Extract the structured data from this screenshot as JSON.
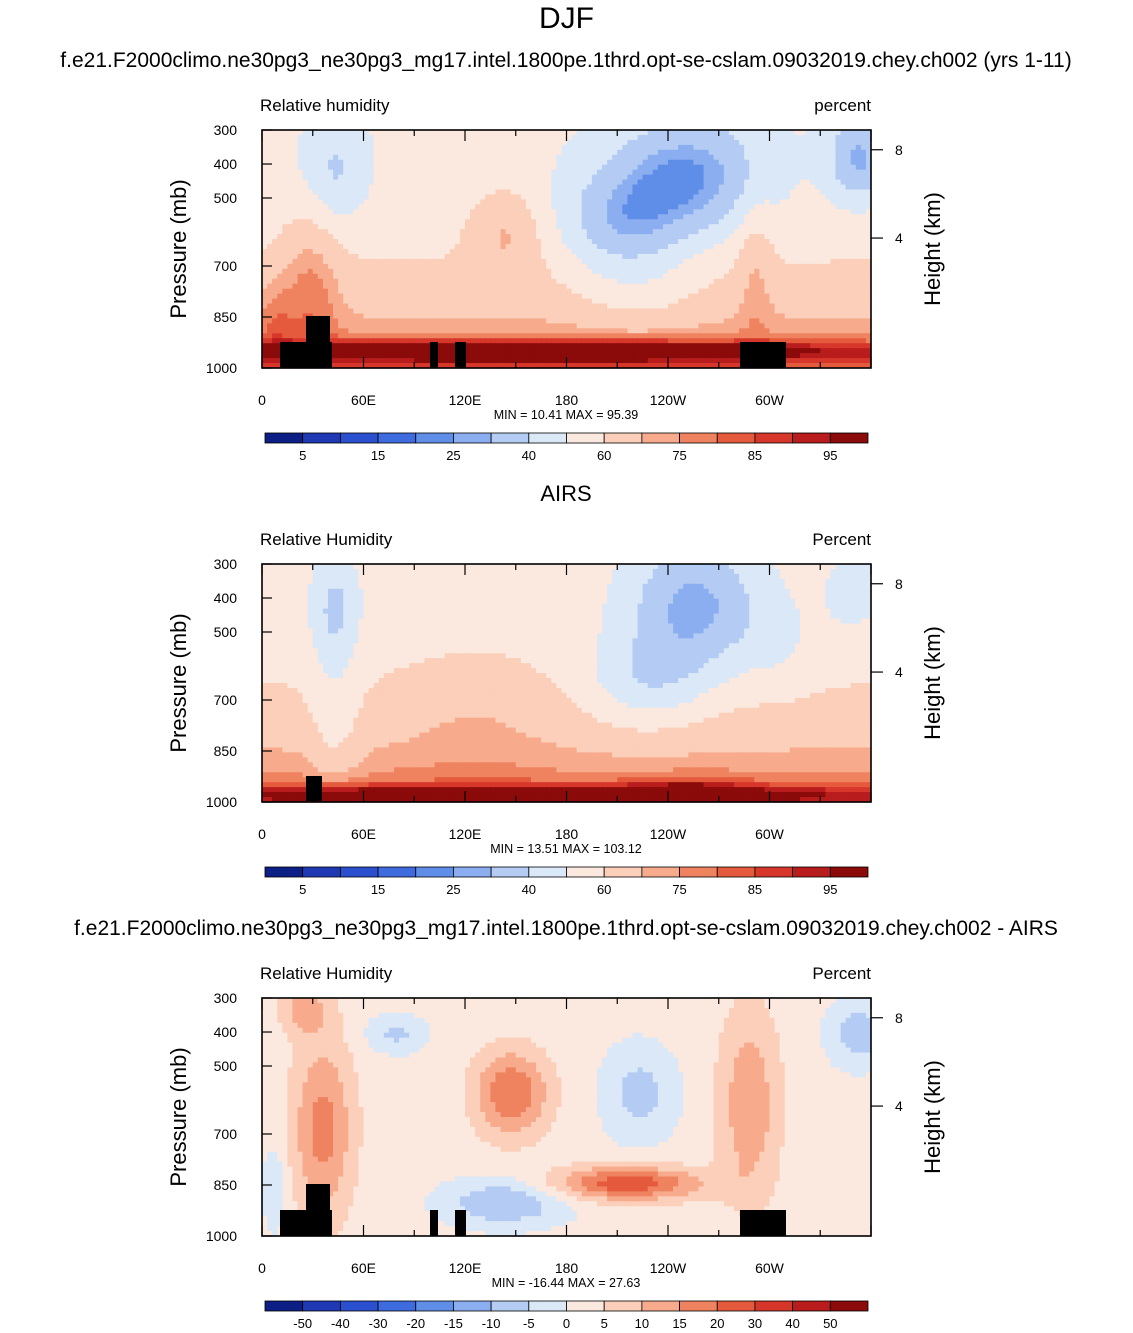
{
  "title": "DJF",
  "colormap": {
    "rh_levels": [
      "5",
      "15",
      "25",
      "40",
      "60",
      "75",
      "85",
      "95"
    ],
    "diff_levels": [
      "-50",
      "-40",
      "-30",
      "-20",
      "-15",
      "-10",
      "-5",
      "0",
      "5",
      "10",
      "15",
      "20",
      "30",
      "40",
      "50"
    ],
    "colors": [
      "#0c1f84",
      "#1f39b4",
      "#2a50cf",
      "#3e6cde",
      "#5f8ee8",
      "#8aaeef",
      "#b4ccf3",
      "#dbe8f7",
      "#fbe9df",
      "#fbcfb9",
      "#f7ab8c",
      "#ef8360",
      "#e55a3c",
      "#d6372a",
      "#b81c1c",
      "#8b0a0a"
    ]
  },
  "chart_data": [
    {
      "type": "heatmap",
      "name": "model",
      "heading": "f.e21.F2000climo.ne30pg3_ne30pg3_mg17.intel.1800pe.1thrd.opt-se-cslam.09032019.chey.ch002 (yrs 1-11)",
      "left_label": "Relative humidity",
      "right_label": "percent",
      "ylabel": "Pressure (mb)",
      "y2label": "Height (km)",
      "xticks": [
        "0",
        "60E",
        "120E",
        "180",
        "120W",
        "60W"
      ],
      "yticks": [
        "300",
        "400",
        "500",
        "700",
        "850",
        "1000"
      ],
      "y2ticks": [
        "8",
        "4"
      ],
      "stats": "MIN =  10.41  MAX =  95.39",
      "min": 10.41,
      "max": 95.39,
      "xlim": [
        0,
        360
      ],
      "ylim": [
        1000,
        300
      ],
      "colorbar_labels": "rh"
    },
    {
      "type": "heatmap",
      "name": "obs",
      "heading": "AIRS",
      "left_label": "Relative Humidity",
      "right_label": "Percent",
      "ylabel": "Pressure (mb)",
      "y2label": "Height (km)",
      "xticks": [
        "0",
        "60E",
        "120E",
        "180",
        "120W",
        "60W"
      ],
      "yticks": [
        "300",
        "400",
        "500",
        "700",
        "850",
        "1000"
      ],
      "y2ticks": [
        "8",
        "4"
      ],
      "stats": "MIN =  13.51  MAX = 103.12",
      "min": 13.51,
      "max": 103.12,
      "xlim": [
        0,
        360
      ],
      "ylim": [
        1000,
        300
      ],
      "colorbar_labels": "rh"
    },
    {
      "type": "heatmap",
      "name": "diff",
      "heading": "f.e21.F2000climo.ne30pg3_ne30pg3_mg17.intel.1800pe.1thrd.opt-se-cslam.09032019.chey.ch002 - AIRS",
      "left_label": "Relative Humidity",
      "right_label": "Percent",
      "ylabel": "Pressure (mb)",
      "y2label": "Height (km)",
      "xticks": [
        "0",
        "60E",
        "120E",
        "180",
        "120W",
        "60W"
      ],
      "yticks": [
        "300",
        "400",
        "500",
        "700",
        "850",
        "1000"
      ],
      "y2ticks": [
        "8",
        "4"
      ],
      "stats": "MIN = -16.44  MAX = 27.63",
      "min": -16.44,
      "max": 27.63,
      "xlim": [
        0,
        360
      ],
      "ylim": [
        1000,
        300
      ],
      "colorbar_labels": "diff"
    }
  ]
}
